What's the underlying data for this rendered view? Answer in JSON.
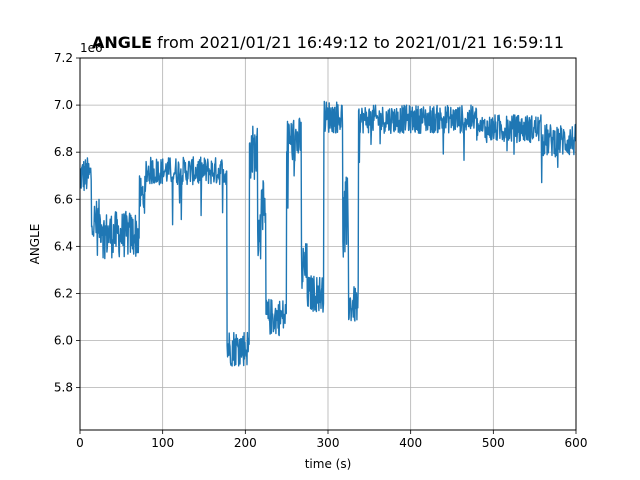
{
  "chart_data": {
    "type": "line",
    "title_bold": "ANGLE",
    "title_rest": " from 2021/01/21 16:49:12 to 2021/01/21 16:59:11",
    "xlabel": "time (s)",
    "ylabel": "ANGLE",
    "scale_label": "1e6",
    "xlim": [
      0,
      600
    ],
    "ylim": [
      5.62,
      7.2
    ],
    "xticks": [
      0,
      100,
      200,
      300,
      400,
      500,
      600
    ],
    "yticks": [
      5.8,
      6.0,
      6.2,
      6.4,
      6.6,
      6.8,
      7.0,
      7.2
    ],
    "ytick_labels": [
      "5.8",
      "6.0",
      "6.2",
      "6.4",
      "6.6",
      "6.8",
      "7.0",
      "7.2"
    ],
    "grid": true,
    "line_color": "#1f77b4",
    "segments": [
      {
        "t0": 0,
        "t1": 14,
        "base": 6.7,
        "noise": 0.08
      },
      {
        "t0": 14,
        "t1": 28,
        "base": 6.5,
        "noise": 0.1
      },
      {
        "t0": 28,
        "t1": 72,
        "base": 6.45,
        "noise": 0.1
      },
      {
        "t0": 72,
        "t1": 80,
        "base": 6.62,
        "noise": 0.08
      },
      {
        "t0": 80,
        "t1": 178,
        "base": 6.72,
        "noise": 0.06
      },
      {
        "t0": 178,
        "t1": 205,
        "base": 5.97,
        "noise": 0.08
      },
      {
        "t0": 205,
        "t1": 215,
        "base": 6.8,
        "noise": 0.12
      },
      {
        "t0": 215,
        "t1": 225,
        "base": 6.5,
        "noise": 0.18
      },
      {
        "t0": 225,
        "t1": 250,
        "base": 6.1,
        "noise": 0.08
      },
      {
        "t0": 250,
        "t1": 268,
        "base": 6.85,
        "noise": 0.1
      },
      {
        "t0": 268,
        "t1": 275,
        "base": 6.3,
        "noise": 0.12
      },
      {
        "t0": 275,
        "t1": 295,
        "base": 6.2,
        "noise": 0.08
      },
      {
        "t0": 295,
        "t1": 318,
        "base": 6.95,
        "noise": 0.07
      },
      {
        "t0": 318,
        "t1": 325,
        "base": 6.5,
        "noise": 0.2
      },
      {
        "t0": 325,
        "t1": 337,
        "base": 6.15,
        "noise": 0.08
      },
      {
        "t0": 337,
        "t1": 480,
        "base": 6.94,
        "noise": 0.06
      },
      {
        "t0": 480,
        "t1": 560,
        "base": 6.9,
        "noise": 0.06
      },
      {
        "t0": 560,
        "t1": 600,
        "base": 6.85,
        "noise": 0.07
      }
    ]
  }
}
